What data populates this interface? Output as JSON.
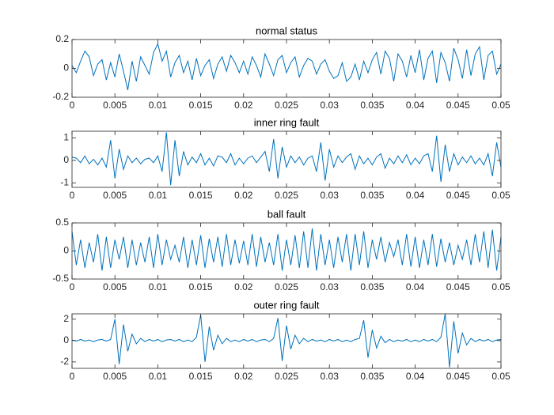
{
  "chart_data": [
    {
      "type": "line",
      "title": "normal status",
      "color": "#0072bd",
      "x": [
        0,
        0.0005,
        0.001,
        0.0015,
        0.002,
        0.0025,
        0.003,
        0.0035,
        0.004,
        0.0045,
        0.005,
        0.0055,
        0.006,
        0.0065,
        0.007,
        0.0075,
        0.008,
        0.0085,
        0.009,
        0.0095,
        0.01,
        0.0105,
        0.011,
        0.0115,
        0.012,
        0.0125,
        0.013,
        0.0135,
        0.014,
        0.0145,
        0.015,
        0.0155,
        0.016,
        0.0165,
        0.017,
        0.0175,
        0.018,
        0.0185,
        0.019,
        0.0195,
        0.02,
        0.0205,
        0.021,
        0.0215,
        0.022,
        0.0225,
        0.023,
        0.0235,
        0.024,
        0.0245,
        0.025,
        0.0255,
        0.026,
        0.0265,
        0.027,
        0.0275,
        0.028,
        0.0285,
        0.029,
        0.0295,
        0.03,
        0.0305,
        0.031,
        0.0315,
        0.032,
        0.0325,
        0.033,
        0.0335,
        0.034,
        0.0345,
        0.035,
        0.0355,
        0.036,
        0.0365,
        0.037,
        0.0375,
        0.038,
        0.0385,
        0.039,
        0.0395,
        0.04,
        0.0405,
        0.041,
        0.0415,
        0.042,
        0.0425,
        0.043,
        0.0435,
        0.044,
        0.0445,
        0.045,
        0.0455,
        0.046,
        0.0465,
        0.047,
        0.0475,
        0.048,
        0.0485,
        0.049,
        0.0495,
        0.05
      ],
      "values": [
        0.02,
        -0.03,
        0.05,
        0.12,
        0.08,
        -0.05,
        0.03,
        0.06,
        -0.08,
        0.04,
        -0.06,
        0.1,
        -0.02,
        -0.15,
        0.05,
        -0.09,
        0.08,
        0.02,
        -0.04,
        0.11,
        0.17,
        0.05,
        0.12,
        -0.06,
        0.04,
        0.09,
        -0.03,
        0.05,
        -0.08,
        0.07,
        -0.05,
        0.02,
        0.06,
        -0.07,
        0.03,
        0.08,
        -0.02,
        0.09,
        0.04,
        -0.03,
        0.05,
        -0.04,
        0.08,
        0.02,
        -0.06,
        0.1,
        0.03,
        -0.05,
        0.06,
        0.09,
        -0.03,
        0.04,
        0.08,
        -0.06,
        0.02,
        0.07,
        0.05,
        -0.04,
        0.03,
        0.06,
        -0.02,
        -0.07,
        -0.05,
        0.04,
        -0.09,
        -0.06,
        0.03,
        -0.08,
        0.05,
        -0.03,
        0.06,
        0.11,
        -0.04,
        0.12,
        0.07,
        -0.09,
        0.1,
        0.05,
        -0.06,
        0.09,
        -0.03,
        0.13,
        -0.08,
        0.07,
        0.12,
        -0.1,
        0.11,
        0.04,
        -0.09,
        0.14,
        0.06,
        -0.07,
        0.13,
        -0.05,
        0.1,
        0.15,
        -0.08,
        0.09,
        0.12,
        -0.04,
        0.03
      ],
      "xlim": [
        0,
        0.05
      ],
      "xticks": [
        0,
        0.005,
        0.01,
        0.015,
        0.02,
        0.025,
        0.03,
        0.035,
        0.04,
        0.045,
        0.05
      ],
      "ylim": [
        -0.2,
        0.2
      ],
      "yticks": [
        -0.2,
        0,
        0.2
      ]
    },
    {
      "type": "line",
      "title": "inner ring fault",
      "color": "#0072bd",
      "x": [
        0,
        0.0005,
        0.001,
        0.0015,
        0.002,
        0.0025,
        0.003,
        0.0035,
        0.004,
        0.0045,
        0.005,
        0.0055,
        0.006,
        0.0065,
        0.007,
        0.0075,
        0.008,
        0.0085,
        0.009,
        0.0095,
        0.01,
        0.0105,
        0.011,
        0.0115,
        0.012,
        0.0125,
        0.013,
        0.0135,
        0.014,
        0.0145,
        0.015,
        0.0155,
        0.016,
        0.0165,
        0.017,
        0.0175,
        0.018,
        0.0185,
        0.019,
        0.0195,
        0.02,
        0.0205,
        0.021,
        0.0215,
        0.022,
        0.0225,
        0.023,
        0.0235,
        0.024,
        0.0245,
        0.025,
        0.0255,
        0.026,
        0.0265,
        0.027,
        0.0275,
        0.028,
        0.0285,
        0.029,
        0.0295,
        0.03,
        0.0305,
        0.031,
        0.0315,
        0.032,
        0.0325,
        0.033,
        0.0335,
        0.034,
        0.0345,
        0.035,
        0.0355,
        0.036,
        0.0365,
        0.037,
        0.0375,
        0.038,
        0.0385,
        0.039,
        0.0395,
        0.04,
        0.0405,
        0.041,
        0.0415,
        0.042,
        0.0425,
        0.043,
        0.0435,
        0.044,
        0.0445,
        0.045,
        0.0455,
        0.046,
        0.0465,
        0.047,
        0.0475,
        0.048,
        0.0485,
        0.049,
        0.0495,
        0.05
      ],
      "values": [
        0.15,
        0.1,
        -0.1,
        0.2,
        -0.15,
        0.05,
        -0.2,
        0.1,
        -0.3,
        0.9,
        -0.8,
        0.5,
        -0.4,
        0.2,
        -0.1,
        0.1,
        -0.15,
        0.05,
        0.1,
        -0.1,
        0.2,
        -0.5,
        1.25,
        -1.1,
        0.9,
        -0.7,
        0.4,
        -0.2,
        0.15,
        -0.1,
        0.3,
        -0.2,
        0.1,
        -0.25,
        0.2,
        0.15,
        -0.1,
        0.3,
        -0.2,
        0.1,
        -0.15,
        0.1,
        0.2,
        -0.1,
        0.15,
        0.4,
        -0.5,
        0.95,
        -0.8,
        0.6,
        -0.3,
        0.2,
        -0.1,
        0.15,
        -0.2,
        0.1,
        0.2,
        -0.5,
        0.8,
        -0.9,
        0.5,
        -0.3,
        0.2,
        -0.1,
        0.15,
        0.3,
        -0.4,
        0.2,
        -0.15,
        0.1,
        -0.2,
        0.15,
        0.3,
        -0.35,
        0.1,
        -0.15,
        0.2,
        -0.1,
        0.25,
        -0.2,
        0.1,
        -0.15,
        0.2,
        0.3,
        -0.5,
        1.1,
        -0.95,
        0.7,
        -0.5,
        0.3,
        -0.2,
        0.15,
        -0.1,
        0.2,
        -0.15,
        0.1,
        -0.2,
        0.3,
        -0.7,
        0.8,
        -0.3
      ],
      "xlim": [
        0,
        0.05
      ],
      "xticks": [
        0,
        0.005,
        0.01,
        0.015,
        0.02,
        0.025,
        0.03,
        0.035,
        0.04,
        0.045,
        0.05
      ],
      "ylim": [
        -1.2,
        1.3
      ],
      "yticks": [
        -1,
        0,
        1
      ]
    },
    {
      "type": "line",
      "title": "ball fault",
      "color": "#0072bd",
      "x": [
        0,
        0.0005,
        0.001,
        0.0015,
        0.002,
        0.0025,
        0.003,
        0.0035,
        0.004,
        0.0045,
        0.005,
        0.0055,
        0.006,
        0.0065,
        0.007,
        0.0075,
        0.008,
        0.0085,
        0.009,
        0.0095,
        0.01,
        0.0105,
        0.011,
        0.0115,
        0.012,
        0.0125,
        0.013,
        0.0135,
        0.014,
        0.0145,
        0.015,
        0.0155,
        0.016,
        0.0165,
        0.017,
        0.0175,
        0.018,
        0.0185,
        0.019,
        0.0195,
        0.02,
        0.0205,
        0.021,
        0.0215,
        0.022,
        0.0225,
        0.023,
        0.0235,
        0.024,
        0.0245,
        0.025,
        0.0255,
        0.026,
        0.0265,
        0.027,
        0.0275,
        0.028,
        0.0285,
        0.029,
        0.0295,
        0.03,
        0.0305,
        0.031,
        0.0315,
        0.032,
        0.0325,
        0.033,
        0.0335,
        0.034,
        0.0345,
        0.035,
        0.0355,
        0.036,
        0.0365,
        0.037,
        0.0375,
        0.038,
        0.0385,
        0.039,
        0.0395,
        0.04,
        0.0405,
        0.041,
        0.0415,
        0.042,
        0.0425,
        0.043,
        0.0435,
        0.044,
        0.0445,
        0.045,
        0.0455,
        0.046,
        0.0465,
        0.047,
        0.0475,
        0.048,
        0.0485,
        0.049,
        0.0495,
        0.05
      ],
      "values": [
        0.35,
        -0.25,
        0.2,
        -0.3,
        0.15,
        -0.2,
        0.3,
        -0.35,
        0.25,
        -0.3,
        0.2,
        -0.15,
        0.25,
        -0.3,
        0.2,
        -0.25,
        0.15,
        -0.2,
        0.25,
        -0.3,
        0.3,
        -0.25,
        0.2,
        -0.15,
        0.1,
        -0.2,
        0.25,
        -0.3,
        0.2,
        -0.25,
        0.28,
        -0.3,
        0.22,
        -0.2,
        0.25,
        -0.28,
        0.3,
        -0.25,
        0.2,
        -0.22,
        0.18,
        -0.25,
        0.3,
        -0.28,
        0.25,
        -0.2,
        0.15,
        -0.25,
        0.3,
        -0.35,
        0.2,
        -0.25,
        0.28,
        -0.3,
        0.35,
        -0.3,
        0.4,
        -0.35,
        0.3,
        -0.25,
        0.2,
        -0.3,
        0.25,
        -0.2,
        0.3,
        -0.35,
        0.3,
        -0.25,
        0.35,
        -0.3,
        0.2,
        -0.15,
        0.25,
        -0.2,
        0.15,
        -0.1,
        0.2,
        -0.25,
        0.3,
        -0.28,
        0.25,
        -0.3,
        0.2,
        -0.25,
        0.3,
        -0.28,
        0.22,
        -0.2,
        0.15,
        -0.25,
        0.1,
        -0.15,
        0.2,
        -0.25,
        0.3,
        -0.2,
        0.35,
        -0.3,
        0.38,
        -0.35,
        0.25
      ],
      "xlim": [
        0,
        0.05
      ],
      "xticks": [
        0,
        0.005,
        0.01,
        0.015,
        0.02,
        0.025,
        0.03,
        0.035,
        0.04,
        0.045,
        0.05
      ],
      "ylim": [
        -0.5,
        0.5
      ],
      "yticks": [
        -0.5,
        0,
        0.5
      ]
    },
    {
      "type": "line",
      "title": "outer ring fault",
      "color": "#0072bd",
      "x": [
        0,
        0.0005,
        0.001,
        0.0015,
        0.002,
        0.0025,
        0.003,
        0.0035,
        0.004,
        0.0045,
        0.005,
        0.0055,
        0.006,
        0.0065,
        0.007,
        0.0075,
        0.008,
        0.0085,
        0.009,
        0.0095,
        0.01,
        0.0105,
        0.011,
        0.0115,
        0.012,
        0.0125,
        0.013,
        0.0135,
        0.014,
        0.0145,
        0.015,
        0.0155,
        0.016,
        0.0165,
        0.017,
        0.0175,
        0.018,
        0.0185,
        0.019,
        0.0195,
        0.02,
        0.0205,
        0.021,
        0.0215,
        0.022,
        0.0225,
        0.023,
        0.0235,
        0.024,
        0.0245,
        0.025,
        0.0255,
        0.026,
        0.0265,
        0.027,
        0.0275,
        0.028,
        0.0285,
        0.029,
        0.0295,
        0.03,
        0.0305,
        0.031,
        0.0315,
        0.032,
        0.0325,
        0.033,
        0.0335,
        0.034,
        0.0345,
        0.035,
        0.0355,
        0.036,
        0.0365,
        0.037,
        0.0375,
        0.038,
        0.0385,
        0.039,
        0.0395,
        0.04,
        0.0405,
        0.041,
        0.0415,
        0.042,
        0.0425,
        0.043,
        0.0435,
        0.044,
        0.0445,
        0.045,
        0.0455,
        0.046,
        0.0465,
        0.047,
        0.0475,
        0.048,
        0.0485,
        0.049,
        0.0495,
        0.05
      ],
      "values": [
        0.05,
        -0.05,
        0.1,
        -0.05,
        0.05,
        -0.1,
        0.05,
        0.1,
        -0.05,
        0.1,
        2.0,
        -2.2,
        1.5,
        -1.0,
        0.6,
        -0.3,
        0.2,
        -0.1,
        0.1,
        -0.05,
        0.1,
        -0.1,
        0.05,
        0.1,
        -0.05,
        0.1,
        -0.1,
        0.05,
        -0.1,
        0.3,
        2.4,
        -2.0,
        1.3,
        -0.9,
        0.5,
        -0.3,
        0.2,
        -0.1,
        0.05,
        -0.1,
        0.1,
        -0.05,
        0.1,
        -0.1,
        0.05,
        0.1,
        -0.1,
        0.2,
        2.1,
        -1.9,
        1.4,
        -0.8,
        0.5,
        -0.3,
        0.2,
        -0.1,
        0.1,
        -0.05,
        0.05,
        -0.1,
        0.1,
        -0.05,
        0.1,
        -0.1,
        0.05,
        -0.1,
        0.1,
        0.2,
        1.9,
        -1.6,
        1.0,
        -0.7,
        0.4,
        -0.2,
        0.1,
        -0.1,
        0.05,
        -0.05,
        0.1,
        -0.1,
        0.05,
        -0.1,
        0.1,
        -0.05,
        0.1,
        -0.1,
        0.3,
        2.5,
        -2.5,
        1.8,
        -1.2,
        0.7,
        -0.4,
        0.2,
        -0.1,
        0.1,
        -0.05,
        0.1,
        -0.1,
        0.05,
        0.1
      ],
      "xlim": [
        0,
        0.05
      ],
      "xticks": [
        0,
        0.005,
        0.01,
        0.015,
        0.02,
        0.025,
        0.03,
        0.035,
        0.04,
        0.045,
        0.05
      ],
      "ylim": [
        -2.6,
        2.5
      ],
      "yticks": [
        -2,
        0,
        2
      ]
    }
  ]
}
